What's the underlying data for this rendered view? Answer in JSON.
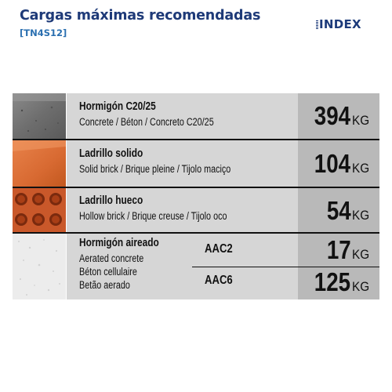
{
  "header": {
    "title": "Cargas máximas recomendadas",
    "code": "[TN4S12]",
    "logo": "INDEX"
  },
  "colors": {
    "title": "#1e3a78",
    "code": "#2a6fb0",
    "description_cell": "#d6d6d6",
    "value_cell": "#b9b9b9"
  },
  "rows": [
    {
      "material": "Hormigón  C20/25",
      "translations": "Concrete / Béton / Concreto C20/25",
      "thumbnail": "concrete-texture",
      "load": "394",
      "unit": "KG"
    },
    {
      "material": "Ladrillo solido",
      "translations": "Solid brick / Brique pleine / Tijolo maciço",
      "thumbnail": "solid-brick",
      "load": "104",
      "unit": "KG"
    },
    {
      "material": "Ladrillo hueco",
      "translations": "Hollow brick / Brique creuse / Tijolo oco",
      "thumbnail": "hollow-brick",
      "load": "54",
      "unit": "KG"
    },
    {
      "material": "Hormigón aireado",
      "translations": [
        "Aerated concrete",
        "Béton cellulaire",
        "Betão aerado"
      ],
      "thumbnail": "aerated-concrete",
      "grades": [
        {
          "grade": "AAC2",
          "load": "17",
          "unit": "KG"
        },
        {
          "grade": "AAC6",
          "load": "125",
          "unit": "KG"
        }
      ]
    }
  ]
}
